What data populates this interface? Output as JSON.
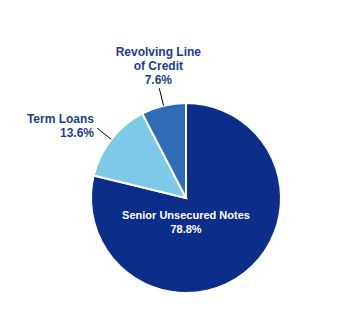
{
  "chart_data": {
    "type": "pie",
    "categories": [
      "Senior Unsecured Notes",
      "Term Loans",
      "Revolving Line\nof Credit"
    ],
    "values": [
      78.8,
      13.6,
      7.6
    ],
    "value_labels": [
      "78.8%",
      "13.6%",
      "7.6%"
    ],
    "colors": [
      "#0C2D8A",
      "#7EC8E8",
      "#2E6DB4"
    ],
    "data_labels": true
  }
}
